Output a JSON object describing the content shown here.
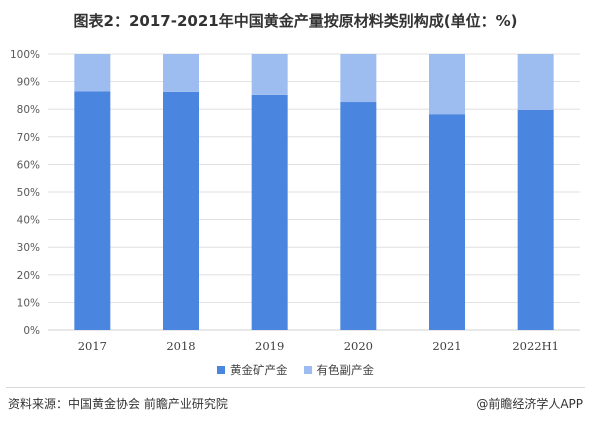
{
  "title": "图表2：2017-2021年中国黄金产量按原材料类别构成(单位：%)",
  "source": "资料来源：中国黄金协会 前瞻产业研究院",
  "credit": "@前瞻经济学人APP",
  "colors": {
    "series1": "#4a86e0",
    "series2": "#9dbdf0",
    "grid": "#d9d9d9"
  },
  "chart_data": {
    "type": "bar",
    "stacked": true,
    "categories": [
      "2017",
      "2018",
      "2019",
      "2020",
      "2021",
      "2022H1"
    ],
    "series": [
      {
        "name": "黄金矿产金",
        "values": [
          86.5,
          86.3,
          85.2,
          82.6,
          78.2,
          79.8
        ]
      },
      {
        "name": "有色副产金",
        "values": [
          13.5,
          13.7,
          14.8,
          17.4,
          21.8,
          20.2
        ]
      }
    ],
    "ylim": [
      0,
      100
    ],
    "yticks": [
      "0%",
      "10%",
      "20%",
      "30%",
      "40%",
      "50%",
      "60%",
      "70%",
      "80%",
      "90%",
      "100%"
    ],
    "legend_position": "bottom"
  }
}
